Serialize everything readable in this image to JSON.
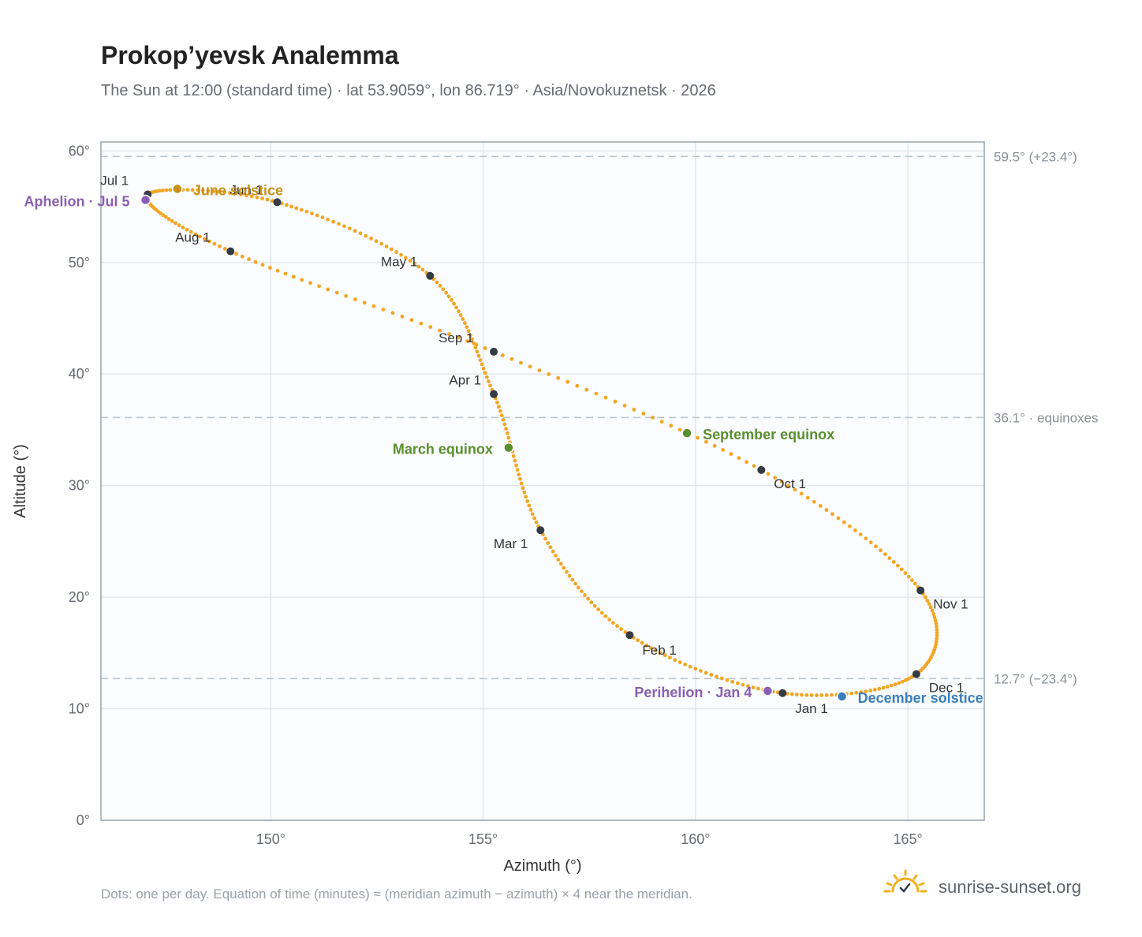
{
  "header": {
    "title": "Prokop’yevsk Analemma",
    "subtitle": "The Sun at 12:00 (standard time) · lat 53.9059°, lon 86.719° · Asia/Novokuznetsk · 2026"
  },
  "footer": {
    "note": "Dots: one per day. Equation of time (minutes) ≈ (meridian azimuth − azimuth) × 4 near the meridian.",
    "brand": "sunrise-sunset.org"
  },
  "colors": {
    "path": "#f2a623",
    "month": "#333b44",
    "solstice_june": "#c8901a",
    "solstice_december": "#3a7fc0",
    "equinox": "#5a8f2e",
    "apsis": "#8a5fb3",
    "grid": "#e3e7ec",
    "frame": "#9aa6b2",
    "plot_bg": "#fafcfe",
    "ref_line": "#b8c3cc"
  },
  "chart_data": {
    "type": "scatter",
    "xlabel": "Azimuth (°)",
    "ylabel": "Altitude (°)",
    "xlim": [
      146,
      166.8
    ],
    "ylim": [
      0,
      60.8
    ],
    "xticks": [
      150,
      155,
      160,
      165
    ],
    "xtick_labels": [
      "150°",
      "155°",
      "160°",
      "165°"
    ],
    "yticks": [
      0,
      10,
      20,
      30,
      40,
      50,
      60
    ],
    "ytick_labels": [
      "0°",
      "10°",
      "20°",
      "30°",
      "40°",
      "50°",
      "60°"
    ],
    "grid": true,
    "reference_lines": [
      {
        "y": 59.5,
        "label": "59.5° (+23.4°)"
      },
      {
        "y": 36.1,
        "label": "36.1° · equinoxes"
      },
      {
        "y": 12.7,
        "label": "12.7° (−23.4°)"
      }
    ],
    "months": [
      {
        "label": "Jan 1",
        "x": 162.05,
        "y": 11.4
      },
      {
        "label": "Feb 1",
        "x": 158.45,
        "y": 16.6
      },
      {
        "label": "Mar 1",
        "x": 156.35,
        "y": 26.0
      },
      {
        "label": "Apr 1",
        "x": 155.25,
        "y": 38.2
      },
      {
        "label": "May 1",
        "x": 153.75,
        "y": 48.8
      },
      {
        "label": "Jun 1",
        "x": 150.15,
        "y": 55.4
      },
      {
        "label": "Jul 1",
        "x": 147.1,
        "y": 56.1
      },
      {
        "label": "Aug 1",
        "x": 149.05,
        "y": 51.0
      },
      {
        "label": "Sep 1",
        "x": 155.25,
        "y": 42.0
      },
      {
        "label": "Oct 1",
        "x": 161.55,
        "y": 31.4
      },
      {
        "label": "Nov 1",
        "x": 165.3,
        "y": 20.6
      },
      {
        "label": "Dec 1",
        "x": 165.2,
        "y": 13.1
      }
    ],
    "events": [
      {
        "label": "June solstice",
        "x": 147.8,
        "y": 56.6,
        "kind": "solstice_june"
      },
      {
        "label": "December solstice",
        "x": 163.45,
        "y": 11.1,
        "kind": "solstice_december"
      },
      {
        "label": "March equinox",
        "x": 155.6,
        "y": 33.4,
        "kind": "equinox"
      },
      {
        "label": "September equinox",
        "x": 159.8,
        "y": 34.7,
        "kind": "equinox"
      },
      {
        "label": "Aphelion · Jul 5",
        "x": 147.05,
        "y": 55.6,
        "kind": "apsis"
      },
      {
        "label": "Perihelion · Jan 4",
        "x": 161.7,
        "y": 11.6,
        "kind": "apsis"
      }
    ]
  }
}
